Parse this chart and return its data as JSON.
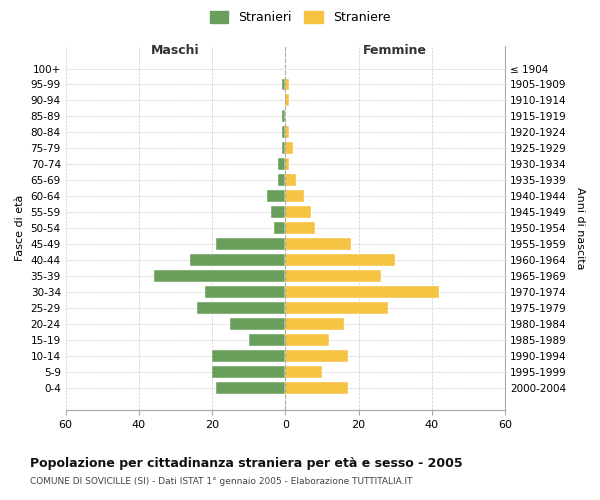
{
  "age_groups": [
    "100+",
    "95-99",
    "90-94",
    "85-89",
    "80-84",
    "75-79",
    "70-74",
    "65-69",
    "60-64",
    "55-59",
    "50-54",
    "45-49",
    "40-44",
    "35-39",
    "30-34",
    "25-29",
    "20-24",
    "15-19",
    "10-14",
    "5-9",
    "0-4"
  ],
  "birth_years": [
    "≤ 1904",
    "1905-1909",
    "1910-1914",
    "1915-1919",
    "1920-1924",
    "1925-1929",
    "1930-1934",
    "1935-1939",
    "1940-1944",
    "1945-1949",
    "1950-1954",
    "1955-1959",
    "1960-1964",
    "1965-1969",
    "1970-1974",
    "1975-1979",
    "1980-1984",
    "1985-1989",
    "1990-1994",
    "1995-1999",
    "2000-2004"
  ],
  "males": [
    0,
    1,
    0,
    1,
    1,
    1,
    2,
    2,
    5,
    4,
    3,
    19,
    26,
    36,
    22,
    24,
    15,
    10,
    20,
    20,
    19
  ],
  "females": [
    0,
    1,
    1,
    0,
    1,
    2,
    1,
    3,
    5,
    7,
    8,
    18,
    30,
    26,
    42,
    28,
    16,
    12,
    17,
    10,
    17
  ],
  "male_color": "#6a9e5b",
  "female_color": "#f5c242",
  "background_color": "#ffffff",
  "grid_color": "#cccccc",
  "title": "Popolazione per cittadinanza straniera per età e sesso - 2005",
  "subtitle": "COMUNE DI SOVICILLE (SI) - Dati ISTAT 1° gennaio 2005 - Elaborazione TUTTITALIA.IT",
  "xlabel_left": "Maschi",
  "xlabel_right": "Femmine",
  "ylabel_left": "Fasce di età",
  "ylabel_right": "Anni di nascita",
  "legend_male": "Stranieri",
  "legend_female": "Straniere",
  "xlim": 60,
  "bar_height": 0.75
}
